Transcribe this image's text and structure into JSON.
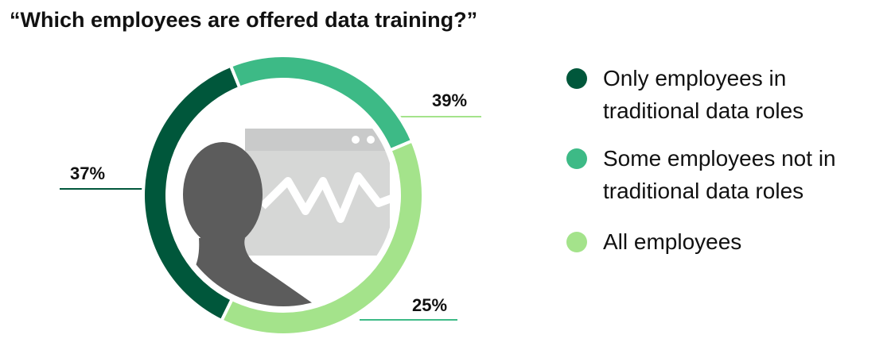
{
  "chart_data": {
    "type": "donut",
    "title": "“Which employees are offered data training?”",
    "categories": [
      "Only employees in traditional data roles",
      "Some employees not in traditional data roles",
      "All employees"
    ],
    "values": [
      37,
      25,
      39
    ],
    "value_labels": [
      "37%",
      "25%",
      "39%"
    ],
    "colors": [
      "#00573b",
      "#3dba86",
      "#a4e38b"
    ]
  }
}
